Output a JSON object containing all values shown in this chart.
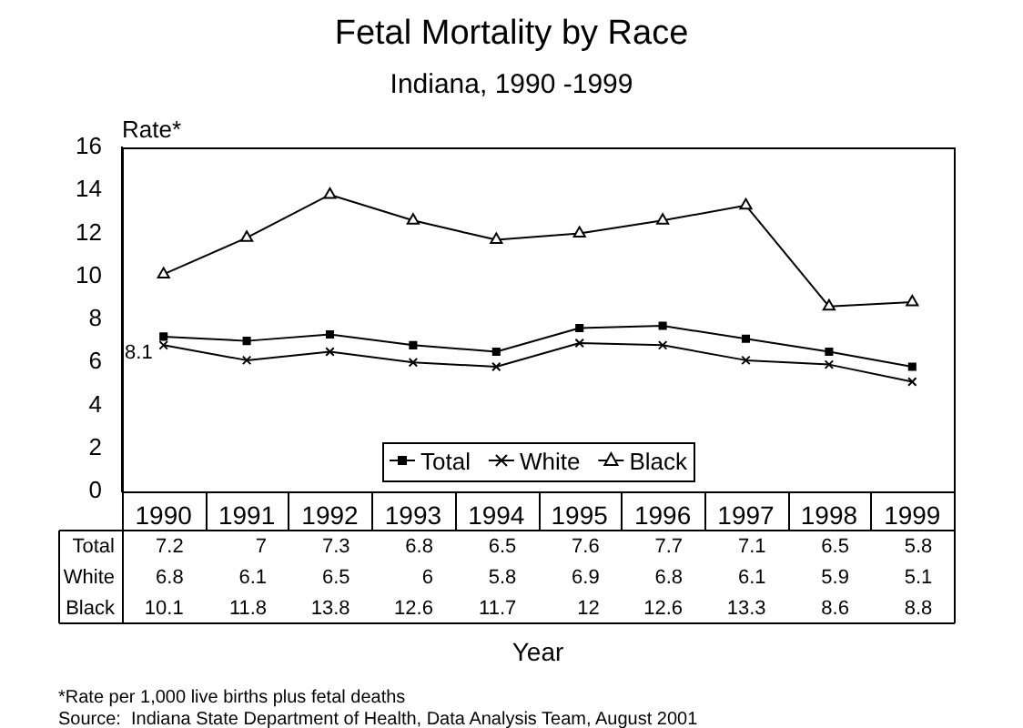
{
  "chart_data": {
    "type": "line",
    "title": "Fetal Mortality by Race",
    "subtitle": "Indiana, 1990 -1999",
    "xlabel": "Year",
    "ylabel": "Rate*",
    "categories": [
      "1990",
      "1991",
      "1992",
      "1993",
      "1994",
      "1995",
      "1996",
      "1997",
      "1998",
      "1999"
    ],
    "series": [
      {
        "name": "Total",
        "color": "#000000",
        "marker": "square",
        "values": [
          7.2,
          7,
          7.3,
          6.8,
          6.5,
          7.6,
          7.7,
          7.1,
          6.5,
          5.8
        ]
      },
      {
        "name": "White",
        "color": "#000000",
        "marker": "cross",
        "values": [
          6.8,
          6.1,
          6.5,
          6,
          5.8,
          6.9,
          6.8,
          6.1,
          5.9,
          5.1
        ]
      },
      {
        "name": "Black",
        "color": "#000000",
        "marker": "triangle",
        "values": [
          10.1,
          11.8,
          13.8,
          12.6,
          11.7,
          12,
          12.6,
          13.3,
          8.6,
          8.8
        ]
      }
    ],
    "ylim": [
      0,
      16
    ],
    "yticks": [
      0,
      2,
      4,
      6,
      8,
      10,
      12,
      14,
      16
    ],
    "grid": false,
    "legend": "bottom",
    "data_labels": true,
    "annotations": [
      {
        "text": "8.1",
        "x": "1990",
        "y": 6.6
      },
      "*Rate per 1,000 live births plus fetal deaths",
      "Source:  Indiana State Department of Health, Data Analysis Team, August 2001"
    ]
  }
}
